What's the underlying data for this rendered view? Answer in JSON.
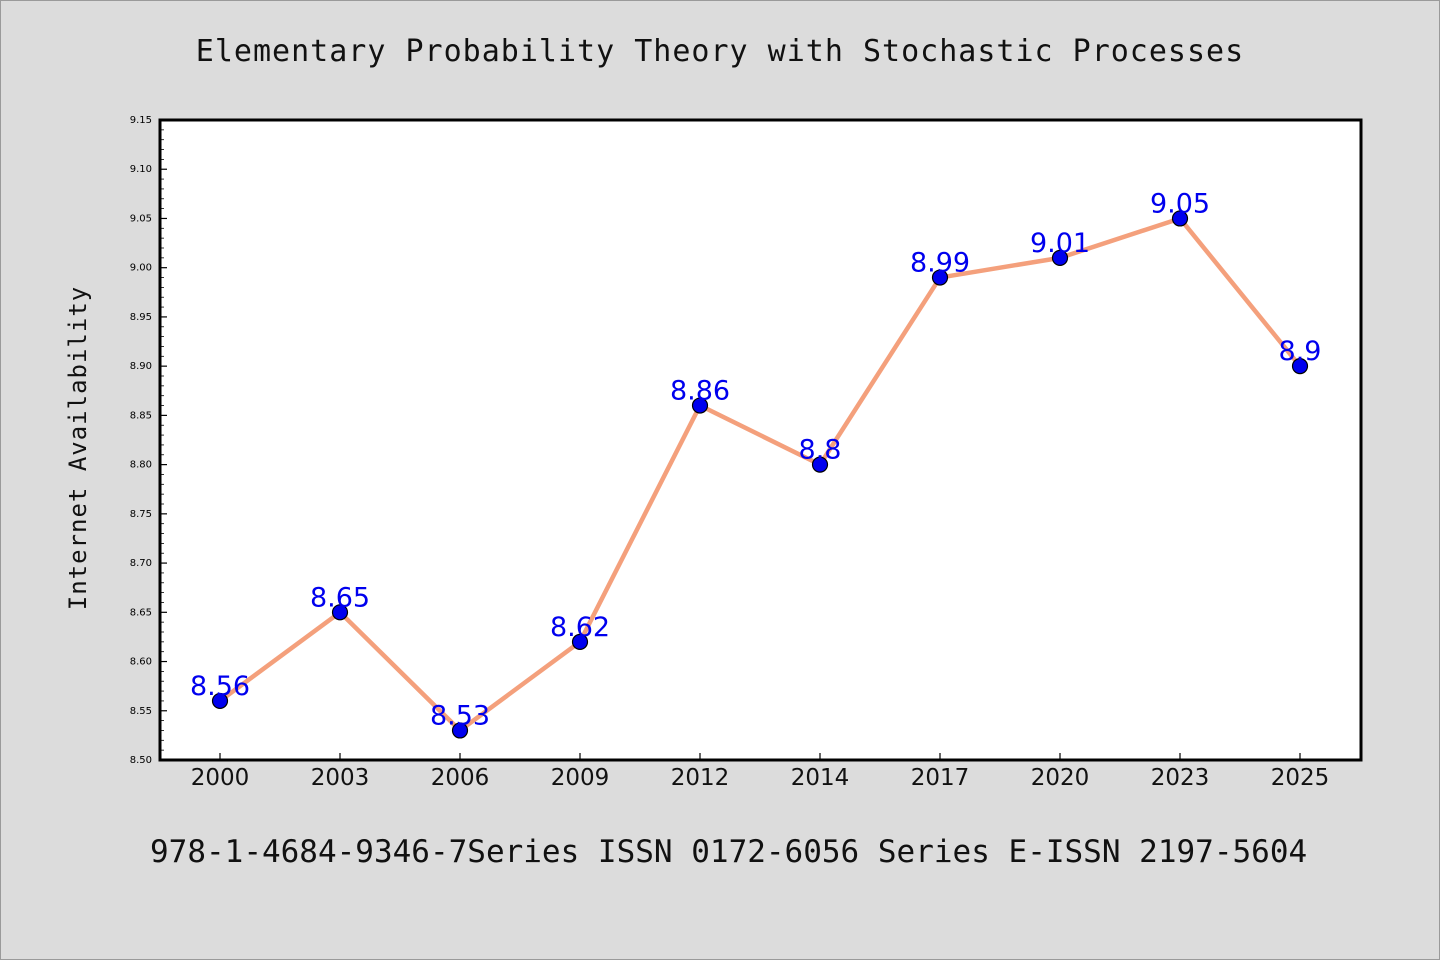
{
  "chart_data": {
    "type": "line",
    "title": "Elementary Probability Theory with Stochastic Processes",
    "ylabel": "Internet Availability",
    "xlabel": "",
    "categories": [
      "2000",
      "2003",
      "2006",
      "2009",
      "2012",
      "2014",
      "2017",
      "2020",
      "2023",
      "2025"
    ],
    "series": [
      {
        "values": [
          8.56,
          8.65,
          8.53,
          8.62,
          8.86,
          8.8,
          8.99,
          9.01,
          9.05,
          8.9
        ],
        "data_labels": [
          "8.56",
          "8.65",
          "8.53",
          "8.62",
          "8.86",
          "8.8",
          "8.99",
          "9.01",
          "9.05",
          "8.9"
        ]
      }
    ],
    "ylim": [
      8.5,
      9.15
    ],
    "yticks": [
      "8.50",
      "8.55",
      "8.60",
      "8.65",
      "8.70",
      "8.75",
      "8.80",
      "8.85",
      "8.90",
      "8.95",
      "9.00",
      "9.05",
      "9.10",
      "9.15"
    ],
    "grid": false,
    "legend": "none",
    "colors": {
      "line": "#f4a07c",
      "marker": "#0000ee",
      "data_label": "#0000ee",
      "background": "#dcdcdc",
      "plot_background": "#ffffff"
    }
  },
  "footer": {
    "text": "978-1-4684-9346-7Series ISSN 0172-6056 Series E-ISSN 2197-5604"
  }
}
